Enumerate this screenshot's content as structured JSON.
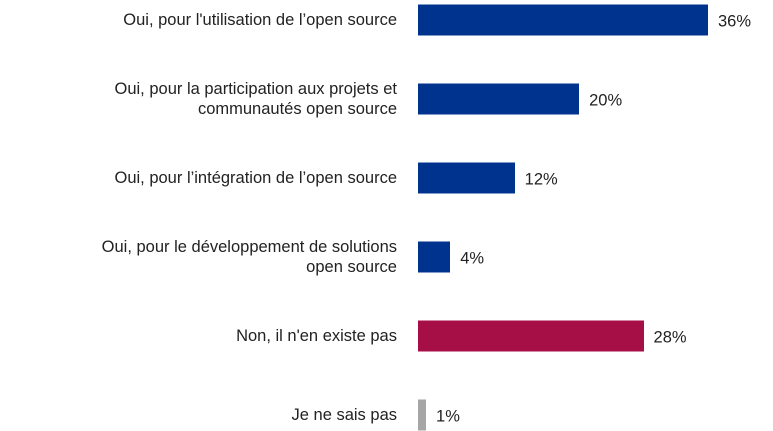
{
  "chart_data": {
    "type": "bar",
    "orientation": "horizontal",
    "categories": [
      "Oui, pour l'utilisation de l’open source",
      "Oui, pour la participation aux projets et\ncommunautés open source",
      "Oui, pour l’intégration de l’open source",
      "Oui, pour le développement de solutions\nopen source",
      "Non, il n'en existe pas",
      "Je ne sais pas"
    ],
    "values": [
      36,
      20,
      12,
      4,
      28,
      1
    ],
    "value_labels": [
      "36%",
      "20%",
      "12%",
      "4%",
      "28%",
      "1%"
    ],
    "colors": [
      "#00338d",
      "#00338d",
      "#00338d",
      "#00338d",
      "#a50f45",
      "#a6a6a6"
    ]
  }
}
